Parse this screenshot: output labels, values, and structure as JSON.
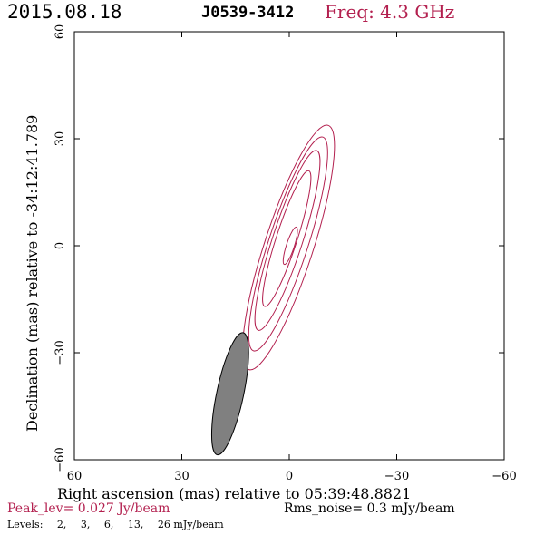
{
  "header": {
    "date": "2015.08.18",
    "source": "J0539-3412",
    "freq": "Freq: 4.3 GHz"
  },
  "colors": {
    "contour": "#b3204f",
    "beam_fill": "#808080",
    "axis": "#000000"
  },
  "chart_data": {
    "type": "contour",
    "xlabel": "Right ascension (mas) relative to 05:39:48.8821",
    "ylabel": "Declination (mas) relative to -34:12:41.789",
    "xlim": [
      60,
      -60
    ],
    "ylim": [
      -60,
      60
    ],
    "xticks": [
      60,
      30,
      0,
      -30,
      -60
    ],
    "yticks": [
      -60,
      -30,
      0,
      30,
      60
    ],
    "xtick_labels": [
      "60",
      "30",
      "0",
      "−30",
      "−60"
    ],
    "ytick_labels": [
      "−60",
      "−30",
      "0",
      "30",
      "60"
    ],
    "contours": [
      {
        "level_mJy": 2,
        "cx": 0.2,
        "cy": -0.5,
        "major": 72,
        "minor": 13.6,
        "pa_deg": 18
      },
      {
        "level_mJy": 3,
        "cx": 0.3,
        "cy": 0.5,
        "major": 63,
        "minor": 11.0,
        "pa_deg": 18
      },
      {
        "level_mJy": 6,
        "cx": 0.5,
        "cy": 1.5,
        "major": 53,
        "minor": 8.4,
        "pa_deg": 18
      },
      {
        "level_mJy": 13,
        "cx": 0.7,
        "cy": 2.0,
        "major": 40,
        "minor": 5.8,
        "pa_deg": 18
      },
      {
        "level_mJy": 26,
        "cx": -0.3,
        "cy": 0.0,
        "major": 11,
        "minor": 2.2,
        "pa_deg": 18
      }
    ],
    "beam": {
      "cx": 16.5,
      "cy": -41.5,
      "major": 35,
      "minor": 7.5,
      "pa_deg": 12
    }
  },
  "footer": {
    "peak": "Peak_lev=  0.027 Jy/beam",
    "rms": "Rms_noise=   0.3 mJy/beam",
    "levels_label": "Levels:",
    "levels": [
      "2,",
      "3,",
      "6,",
      "13,",
      "26 mJy/beam"
    ]
  }
}
